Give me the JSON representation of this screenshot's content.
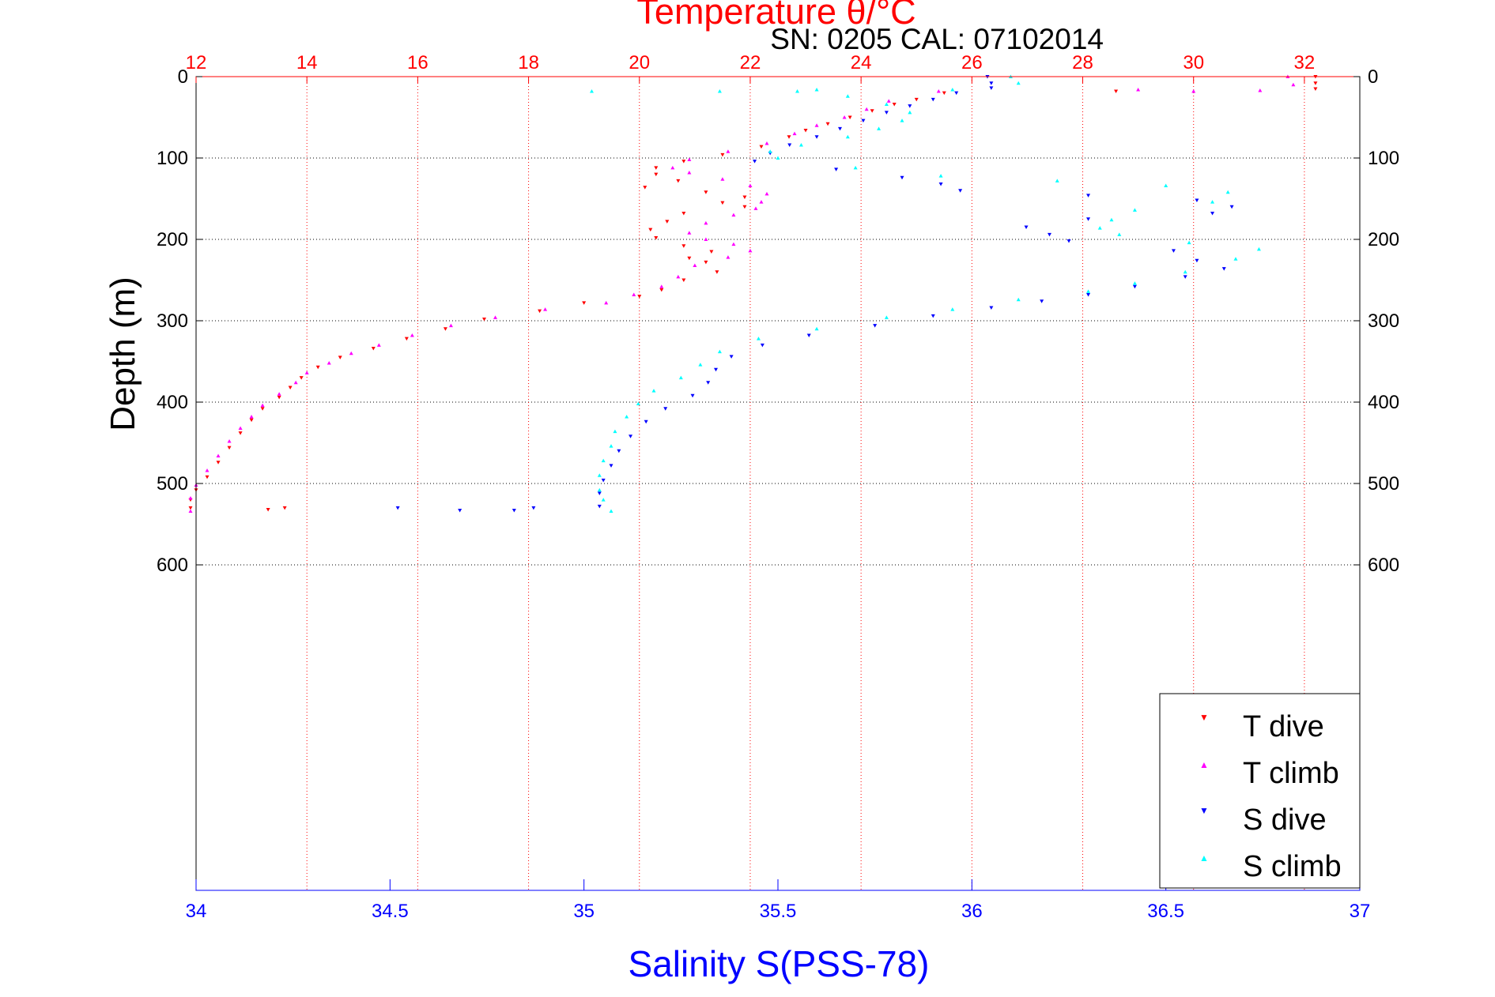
{
  "chart_data": {
    "type": "scatter",
    "title": "Temperature θ/°C",
    "subtitle": "SN: 0205  CAL: 07102014",
    "ylabel": "Depth (m)",
    "xlabel": "Salinity S(PSS-78)",
    "grid": true,
    "legend_position": "bottom-right",
    "colors": {
      "temperature_axis": "#ff0000",
      "salinity_axis": "#0000ff",
      "t_dive": "#ff0000",
      "t_climb": "#ff00ff",
      "s_dive": "#0000ff",
      "s_climb": "#00ffff"
    },
    "y_axis": {
      "range": [
        0,
        1000
      ],
      "reversed": true,
      "ticks": [
        0,
        100,
        200,
        300,
        400,
        500,
        600
      ],
      "tick_labels": [
        "0",
        "100",
        "200",
        "300",
        "400",
        "500",
        "600"
      ]
    },
    "x_axis_top": {
      "quantity": "temperature",
      "range": [
        12,
        33
      ],
      "ticks": [
        12,
        14,
        16,
        18,
        20,
        22,
        24,
        26,
        28,
        30,
        32
      ],
      "tick_labels": [
        "12",
        "14",
        "16",
        "18",
        "20",
        "22",
        "24",
        "26",
        "28",
        "30",
        "32"
      ]
    },
    "x_axis_bottom": {
      "quantity": "salinity",
      "range": [
        34,
        37
      ],
      "ticks": [
        34,
        34.5,
        35,
        35.5,
        36,
        36.5,
        37
      ],
      "tick_labels": [
        "34",
        "34.5",
        "35",
        "35.5",
        "36",
        "36.5",
        "37"
      ]
    },
    "series": [
      {
        "name": "T dive",
        "axis": "temperature",
        "marker": "triangle-down",
        "points": [
          [
            32.2,
            0
          ],
          [
            32.2,
            8
          ],
          [
            32.2,
            15
          ],
          [
            28.6,
            18
          ],
          [
            25.5,
            20
          ],
          [
            25.0,
            28
          ],
          [
            24.6,
            34
          ],
          [
            24.2,
            42
          ],
          [
            23.8,
            50
          ],
          [
            23.4,
            58
          ],
          [
            23.0,
            66
          ],
          [
            22.7,
            74
          ],
          [
            22.2,
            86
          ],
          [
            21.5,
            96
          ],
          [
            20.8,
            104
          ],
          [
            20.3,
            112
          ],
          [
            20.3,
            120
          ],
          [
            20.7,
            128
          ],
          [
            20.1,
            136
          ],
          [
            21.2,
            142
          ],
          [
            21.9,
            148
          ],
          [
            21.5,
            155
          ],
          [
            21.9,
            160
          ],
          [
            20.8,
            168
          ],
          [
            20.5,
            178
          ],
          [
            20.2,
            188
          ],
          [
            20.3,
            198
          ],
          [
            20.8,
            208
          ],
          [
            21.3,
            215
          ],
          [
            20.9,
            223
          ],
          [
            21.2,
            228
          ],
          [
            21.4,
            240
          ],
          [
            20.8,
            250
          ],
          [
            20.4,
            262
          ],
          [
            20.0,
            270
          ],
          [
            19.0,
            278
          ],
          [
            18.2,
            288
          ],
          [
            17.2,
            298
          ],
          [
            16.5,
            310
          ],
          [
            15.8,
            322
          ],
          [
            15.2,
            334
          ],
          [
            14.6,
            345
          ],
          [
            14.2,
            357
          ],
          [
            13.9,
            370
          ],
          [
            13.7,
            382
          ],
          [
            13.5,
            394
          ],
          [
            13.2,
            408
          ],
          [
            13.0,
            422
          ],
          [
            12.8,
            438
          ],
          [
            12.6,
            456
          ],
          [
            12.4,
            474
          ],
          [
            12.2,
            492
          ],
          [
            12.0,
            508
          ],
          [
            11.9,
            520
          ],
          [
            11.9,
            530
          ],
          [
            13.3,
            532
          ],
          [
            13.6,
            530
          ]
        ]
      },
      {
        "name": "T climb",
        "axis": "temperature",
        "marker": "triangle-up",
        "points": [
          [
            31.7,
            0
          ],
          [
            31.8,
            10
          ],
          [
            30.0,
            18
          ],
          [
            31.2,
            17
          ],
          [
            29.0,
            16
          ],
          [
            25.4,
            18
          ],
          [
            24.5,
            30
          ],
          [
            24.1,
            40
          ],
          [
            23.7,
            50
          ],
          [
            23.2,
            60
          ],
          [
            22.8,
            70
          ],
          [
            22.3,
            82
          ],
          [
            21.6,
            92
          ],
          [
            20.9,
            102
          ],
          [
            20.6,
            112
          ],
          [
            20.9,
            118
          ],
          [
            21.5,
            126
          ],
          [
            22.0,
            134
          ],
          [
            22.3,
            144
          ],
          [
            22.2,
            154
          ],
          [
            22.1,
            162
          ],
          [
            21.7,
            170
          ],
          [
            21.2,
            180
          ],
          [
            20.9,
            192
          ],
          [
            21.2,
            200
          ],
          [
            21.7,
            206
          ],
          [
            22.0,
            214
          ],
          [
            21.6,
            222
          ],
          [
            21.0,
            232
          ],
          [
            20.7,
            246
          ],
          [
            20.4,
            258
          ],
          [
            19.9,
            268
          ],
          [
            19.4,
            278
          ],
          [
            18.3,
            286
          ],
          [
            17.4,
            296
          ],
          [
            16.6,
            306
          ],
          [
            15.9,
            318
          ],
          [
            15.3,
            330
          ],
          [
            14.8,
            340
          ],
          [
            14.4,
            352
          ],
          [
            14.0,
            364
          ],
          [
            13.8,
            376
          ],
          [
            13.5,
            390
          ],
          [
            13.2,
            404
          ],
          [
            13.0,
            418
          ],
          [
            12.8,
            432
          ],
          [
            12.6,
            448
          ],
          [
            12.4,
            466
          ],
          [
            12.2,
            484
          ],
          [
            12.0,
            502
          ],
          [
            11.9,
            518
          ],
          [
            11.9,
            534
          ]
        ]
      },
      {
        "name": "S dive",
        "axis": "salinity",
        "marker": "triangle-down",
        "points": [
          [
            36.04,
            0
          ],
          [
            36.05,
            8
          ],
          [
            36.05,
            14
          ],
          [
            35.96,
            20
          ],
          [
            35.9,
            28
          ],
          [
            35.84,
            36
          ],
          [
            35.78,
            44
          ],
          [
            35.72,
            54
          ],
          [
            35.66,
            64
          ],
          [
            35.6,
            74
          ],
          [
            35.53,
            84
          ],
          [
            35.48,
            94
          ],
          [
            35.44,
            104
          ],
          [
            35.65,
            114
          ],
          [
            35.82,
            124
          ],
          [
            35.92,
            132
          ],
          [
            35.97,
            140
          ],
          [
            36.3,
            146
          ],
          [
            36.58,
            152
          ],
          [
            36.67,
            160
          ],
          [
            36.62,
            168
          ],
          [
            36.3,
            175
          ],
          [
            36.14,
            185
          ],
          [
            36.2,
            194
          ],
          [
            36.25,
            202
          ],
          [
            36.52,
            214
          ],
          [
            36.58,
            226
          ],
          [
            36.65,
            236
          ],
          [
            36.55,
            246
          ],
          [
            36.42,
            258
          ],
          [
            36.3,
            268
          ],
          [
            36.18,
            276
          ],
          [
            36.05,
            284
          ],
          [
            35.9,
            294
          ],
          [
            35.75,
            306
          ],
          [
            35.58,
            318
          ],
          [
            35.46,
            330
          ],
          [
            35.38,
            344
          ],
          [
            35.34,
            360
          ],
          [
            35.32,
            376
          ],
          [
            35.28,
            392
          ],
          [
            35.21,
            408
          ],
          [
            35.16,
            424
          ],
          [
            35.12,
            442
          ],
          [
            35.09,
            460
          ],
          [
            35.07,
            478
          ],
          [
            35.05,
            496
          ],
          [
            35.04,
            512
          ],
          [
            35.04,
            528
          ],
          [
            34.52,
            530
          ],
          [
            34.68,
            533
          ],
          [
            34.82,
            533
          ],
          [
            34.87,
            530
          ]
        ]
      },
      {
        "name": "S climb",
        "axis": "salinity",
        "marker": "triangle-up",
        "points": [
          [
            36.1,
            0
          ],
          [
            36.12,
            8
          ],
          [
            35.95,
            16
          ],
          [
            35.6,
            16
          ],
          [
            35.35,
            18
          ],
          [
            35.02,
            18
          ],
          [
            35.55,
            18
          ],
          [
            35.68,
            24
          ],
          [
            35.78,
            34
          ],
          [
            35.84,
            44
          ],
          [
            35.82,
            54
          ],
          [
            35.76,
            64
          ],
          [
            35.68,
            74
          ],
          [
            35.56,
            84
          ],
          [
            35.48,
            92
          ],
          [
            35.5,
            100
          ],
          [
            35.7,
            112
          ],
          [
            35.92,
            122
          ],
          [
            36.22,
            128
          ],
          [
            36.5,
            134
          ],
          [
            36.66,
            142
          ],
          [
            36.62,
            154
          ],
          [
            36.42,
            164
          ],
          [
            36.36,
            176
          ],
          [
            36.33,
            186
          ],
          [
            36.38,
            194
          ],
          [
            36.56,
            204
          ],
          [
            36.74,
            212
          ],
          [
            36.68,
            224
          ],
          [
            36.55,
            240
          ],
          [
            36.42,
            254
          ],
          [
            36.3,
            264
          ],
          [
            36.12,
            274
          ],
          [
            35.95,
            286
          ],
          [
            35.78,
            296
          ],
          [
            35.6,
            310
          ],
          [
            35.45,
            322
          ],
          [
            35.35,
            338
          ],
          [
            35.3,
            354
          ],
          [
            35.25,
            370
          ],
          [
            35.18,
            386
          ],
          [
            35.14,
            402
          ],
          [
            35.11,
            418
          ],
          [
            35.08,
            436
          ],
          [
            35.07,
            454
          ],
          [
            35.05,
            472
          ],
          [
            35.04,
            490
          ],
          [
            35.04,
            508
          ],
          [
            35.05,
            520
          ],
          [
            35.07,
            534
          ]
        ]
      }
    ]
  }
}
